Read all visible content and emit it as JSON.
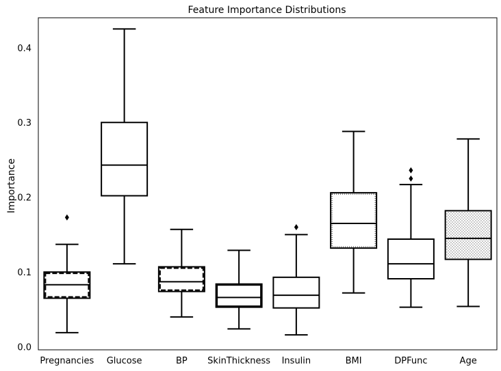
{
  "chart_data": {
    "type": "box",
    "title": "Feature Importance Distributions",
    "ylabel": "Importance",
    "xlabel": "",
    "ylim": [
      -0.004,
      0.44
    ],
    "yticks": [
      0.0,
      0.1,
      0.2,
      0.3,
      0.4
    ],
    "ytick_labels": [
      "0.0",
      "0.1",
      "0.2",
      "0.3",
      "0.4"
    ],
    "grid": false,
    "categories": [
      "Pregnancies",
      "Glucose",
      "BP",
      "SkinThickness",
      "Insulin",
      "BMI",
      "DPFunc",
      "Age"
    ],
    "boxes": [
      {
        "label": "Pregnancies",
        "whislo": 0.019,
        "q1": 0.065,
        "med": 0.083,
        "q3": 0.1,
        "whishi": 0.137,
        "fliers": [
          0.173
        ],
        "pattern": "dashed-border"
      },
      {
        "label": "Glucose",
        "whislo": 0.111,
        "q1": 0.202,
        "med": 0.243,
        "q3": 0.3,
        "whishi": 0.425,
        "fliers": [],
        "pattern": "none"
      },
      {
        "label": "BP",
        "whislo": 0.04,
        "q1": 0.074,
        "med": 0.087,
        "q3": 0.107,
        "whishi": 0.157,
        "fliers": [],
        "pattern": "dashed-border"
      },
      {
        "label": "SkinThickness",
        "whislo": 0.024,
        "q1": 0.053,
        "med": 0.066,
        "q3": 0.084,
        "whishi": 0.129,
        "fliers": [],
        "pattern": "thick-border"
      },
      {
        "label": "Insulin",
        "whislo": 0.016,
        "q1": 0.052,
        "med": 0.069,
        "q3": 0.093,
        "whishi": 0.15,
        "fliers": [
          0.16
        ],
        "pattern": "none"
      },
      {
        "label": "BMI",
        "whislo": 0.072,
        "q1": 0.132,
        "med": 0.165,
        "q3": 0.206,
        "whishi": 0.288,
        "fliers": [],
        "pattern": "dotted-border"
      },
      {
        "label": "DPFunc",
        "whislo": 0.053,
        "q1": 0.091,
        "med": 0.111,
        "q3": 0.144,
        "whishi": 0.217,
        "fliers": [
          0.225,
          0.236
        ],
        "pattern": "none"
      },
      {
        "label": "Age",
        "whislo": 0.054,
        "q1": 0.117,
        "med": 0.145,
        "q3": 0.182,
        "whishi": 0.278,
        "fliers": [],
        "pattern": "dots"
      }
    ]
  }
}
